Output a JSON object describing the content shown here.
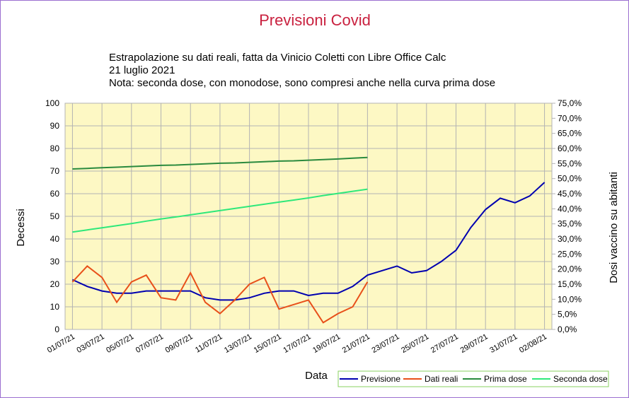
{
  "chart_data": {
    "type": "line",
    "title": "Previsioni Covid",
    "subtitle": [
      "Estrapolazione su dati reali, fatta da Vinicio Coletti con Libre Office Calc",
      "21 luglio 2021",
      "Nota: seconda dose, con monodose, sono compresi anche nella curva prima dose"
    ],
    "x_label": "Data",
    "y_label": "Decessi",
    "y2_label": "Dosi vaccino su abitanti",
    "categories": [
      "01/07/21",
      null,
      "03/07/21",
      null,
      "05/07/21",
      null,
      "07/07/21",
      null,
      "09/07/21",
      null,
      "11/07/21",
      null,
      "13/07/21",
      null,
      "15/07/21",
      null,
      "17/07/21",
      null,
      "19/07/21",
      null,
      "21/07/21",
      null,
      "23/07/21",
      null,
      "25/07/21",
      null,
      "27/07/21",
      null,
      "29/07/21",
      null,
      "31/07/21",
      null,
      "02/08/21"
    ],
    "ylim": [
      0,
      100
    ],
    "yticks": [
      0,
      10,
      20,
      30,
      40,
      50,
      60,
      70,
      80,
      90,
      100
    ],
    "y2lim": [
      0,
      75
    ],
    "y2ticks": [
      {
        "value": 0,
        "label": "0,0%"
      },
      {
        "value": 5,
        "label": "5,0%"
      },
      {
        "value": 10,
        "label": "10,0%"
      },
      {
        "value": 15,
        "label": "15,0%"
      },
      {
        "value": 20,
        "label": "20,0%"
      },
      {
        "value": 25,
        "label": "25,0%"
      },
      {
        "value": 30,
        "label": "30,0%"
      },
      {
        "value": 35,
        "label": "35,0%"
      },
      {
        "value": 40,
        "label": "40,0%"
      },
      {
        "value": 45,
        "label": "45,0%"
      },
      {
        "value": 50,
        "label": "50,0%"
      },
      {
        "value": 55,
        "label": "55,0%"
      },
      {
        "value": 60,
        "label": "60,0%"
      },
      {
        "value": 65,
        "label": "65,0%"
      },
      {
        "value": 70,
        "label": "70,0%"
      },
      {
        "value": 75,
        "label": "75,0%"
      }
    ],
    "grid": true,
    "series": [
      {
        "name": "Previsione",
        "color": "#0000b0",
        "values": [
          22,
          19,
          17,
          16,
          16,
          17,
          17,
          17,
          17,
          14,
          13,
          13,
          14,
          16,
          17,
          17,
          15,
          16,
          16,
          19,
          24,
          26,
          28,
          25,
          26,
          30,
          35,
          45,
          53,
          58,
          56,
          59,
          65
        ]
      },
      {
        "name": "Dati reali",
        "color": "#e8501a",
        "values": [
          21,
          28,
          23,
          12,
          21,
          24,
          14,
          13,
          25,
          12,
          7,
          13,
          20,
          23,
          9,
          11,
          13,
          3,
          7,
          10,
          21,
          null,
          null,
          null,
          null,
          null,
          null,
          null,
          null,
          null,
          null,
          null,
          null
        ]
      },
      {
        "name": "Prima dose",
        "color": "#2a8a3e",
        "axis": "y2",
        "values": [
          53.2,
          53.4,
          53.6,
          53.8,
          54.0,
          54.2,
          54.4,
          54.5,
          54.7,
          54.9,
          55.1,
          55.2,
          55.4,
          55.6,
          55.8,
          55.9,
          56.1,
          56.3,
          56.5,
          56.8,
          57.0,
          null,
          null,
          null,
          null,
          null,
          null,
          null,
          null,
          null,
          null,
          null,
          null
        ]
      },
      {
        "name": "Seconda dose",
        "color": "#2ee87a",
        "axis": "y2",
        "values": [
          32.3,
          33.0,
          33.7,
          34.4,
          35.1,
          35.9,
          36.6,
          37.3,
          38.0,
          38.7,
          39.4,
          40.1,
          40.8,
          41.5,
          42.2,
          42.9,
          43.6,
          44.4,
          45.1,
          45.8,
          46.5,
          null,
          null,
          null,
          null,
          null,
          null,
          null,
          null,
          null,
          null,
          null,
          null
        ]
      }
    ]
  }
}
